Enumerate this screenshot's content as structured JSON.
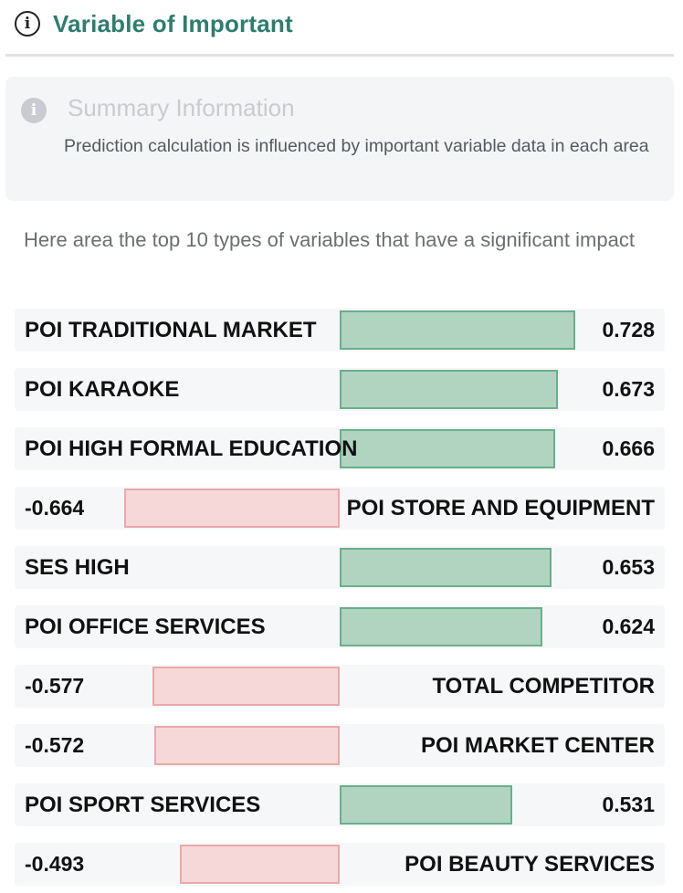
{
  "header": {
    "title": "Variable of Important",
    "icon": "info-circle-icon"
  },
  "summary": {
    "icon": "info-filled-icon",
    "title": "Summary Information",
    "text": "Prediction calculation is influenced by important variable data in each area"
  },
  "intro": "Here area the top 10 types of variables that have a significant impact",
  "colors": {
    "title": "#2e7d6f",
    "positive_fill": "#b0d4c0",
    "positive_border": "#6aaf8a",
    "negative_fill": "#f6d8d9",
    "negative_border": "#eaa8aa"
  },
  "variables": [
    {
      "name": "POI TRADITIONAL MARKET",
      "value": "0.728",
      "score": 0.728
    },
    {
      "name": "POI KARAOKE",
      "value": "0.673",
      "score": 0.673
    },
    {
      "name": "POI HIGH FORMAL EDUCATION",
      "value": "0.666",
      "score": 0.666
    },
    {
      "name": "POI STORE AND EQUIPMENT",
      "value": "-0.664",
      "score": -0.664
    },
    {
      "name": "SES HIGH",
      "value": "0.653",
      "score": 0.653
    },
    {
      "name": "POI OFFICE SERVICES",
      "value": "0.624",
      "score": 0.624
    },
    {
      "name": "TOTAL COMPETITOR",
      "value": "-0.577",
      "score": -0.577
    },
    {
      "name": "POI MARKET CENTER",
      "value": "-0.572",
      "score": -0.572
    },
    {
      "name": "POI SPORT SERVICES",
      "value": "0.531",
      "score": 0.531
    },
    {
      "name": "POI BEAUTY SERVICES",
      "value": "-0.493",
      "score": -0.493
    }
  ]
}
